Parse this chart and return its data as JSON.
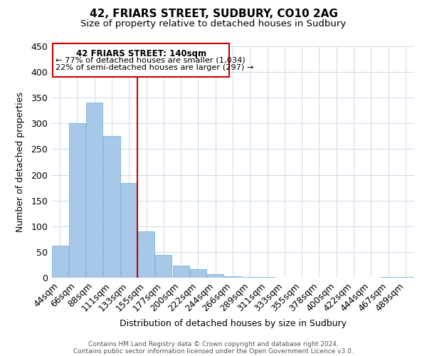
{
  "title": "42, FRIARS STREET, SUDBURY, CO10 2AG",
  "subtitle": "Size of property relative to detached houses in Sudbury",
  "xlabel": "Distribution of detached houses by size in Sudbury",
  "ylabel": "Number of detached properties",
  "bar_labels": [
    "44sqm",
    "66sqm",
    "88sqm",
    "111sqm",
    "133sqm",
    "155sqm",
    "177sqm",
    "200sqm",
    "222sqm",
    "244sqm",
    "266sqm",
    "289sqm",
    "311sqm",
    "333sqm",
    "355sqm",
    "378sqm",
    "400sqm",
    "422sqm",
    "444sqm",
    "467sqm",
    "489sqm"
  ],
  "bar_heights": [
    62,
    301,
    340,
    275,
    184,
    90,
    45,
    23,
    16,
    7,
    3,
    1,
    1,
    0,
    0,
    0,
    0,
    0,
    0,
    1,
    1
  ],
  "bar_color": "#a8c8e8",
  "bar_edge_color": "#6aaad4",
  "vline_color": "#cc0000",
  "vline_x_index": 4,
  "ylim": [
    0,
    450
  ],
  "annotation_title": "42 FRIARS STREET: 140sqm",
  "annotation_line1": "← 77% of detached houses are smaller (1,034)",
  "annotation_line2": "22% of semi-detached houses are larger (297) →",
  "annotation_box_color": "#ffffff",
  "annotation_box_edge": "#cc0000",
  "footer_line1": "Contains HM Land Registry data © Crown copyright and database right 2024.",
  "footer_line2": "Contains public sector information licensed under the Open Government Licence v3.0.",
  "background_color": "#ffffff",
  "grid_color": "#ccd9e8"
}
